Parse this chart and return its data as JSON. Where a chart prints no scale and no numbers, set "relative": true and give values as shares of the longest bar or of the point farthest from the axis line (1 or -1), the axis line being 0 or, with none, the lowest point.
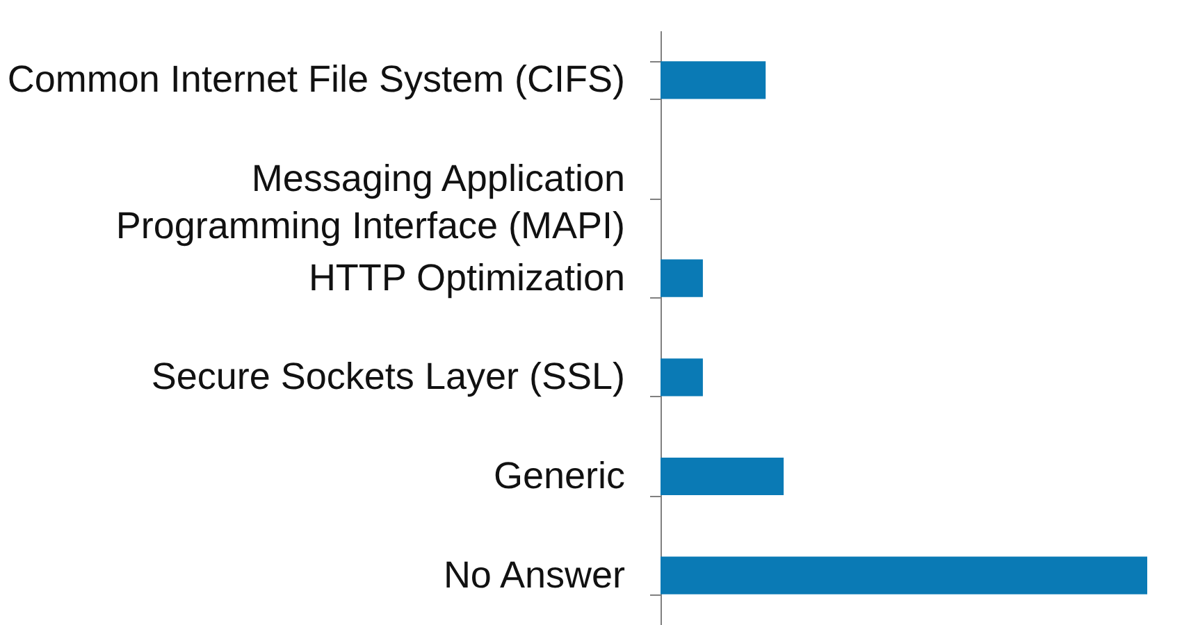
{
  "chart_data": {
    "type": "bar",
    "orientation": "horizontal",
    "relative": true,
    "categories": [
      "Common Internet File System (CIFS)",
      "Messaging Application Programming Interface (MAPI)",
      "HTTP Optimization",
      "Secure Sockets Layer (SSL)",
      "Generic",
      "No Answer"
    ],
    "values": [
      0.216,
      0,
      0.087,
      0.087,
      0.253,
      1
    ],
    "color": "#0a7ab5"
  }
}
